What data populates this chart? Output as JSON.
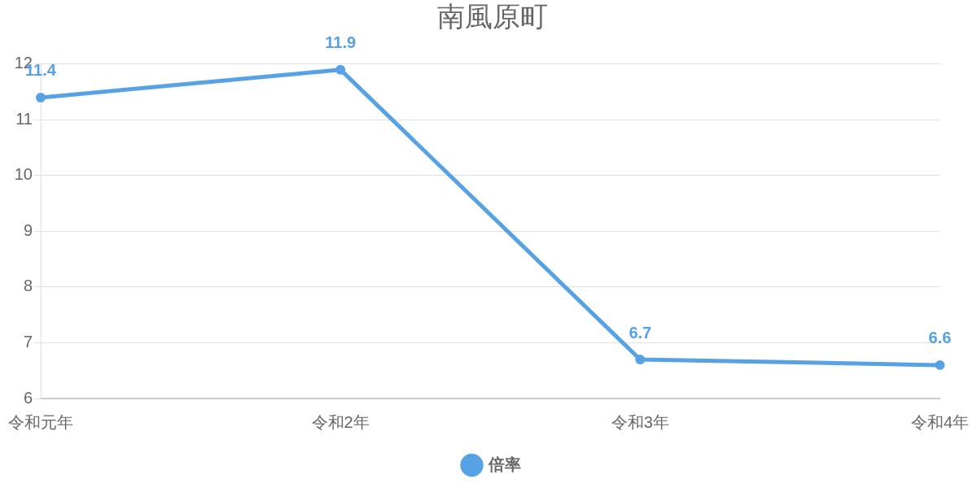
{
  "chart_data": {
    "type": "line",
    "title": "南風原町",
    "categories": [
      "令和元年",
      "令和2年",
      "令和3年",
      "令和4年"
    ],
    "series": [
      {
        "name": "倍率",
        "color": "#57a1e5",
        "values": [
          11.4,
          11.9,
          6.7,
          6.6
        ]
      }
    ],
    "ylim": [
      6,
      12
    ],
    "yticks": [
      6,
      7,
      8,
      9,
      10,
      11,
      12
    ],
    "grid": "y",
    "legend": "bottom",
    "data_labels": true,
    "marker": "circle"
  }
}
